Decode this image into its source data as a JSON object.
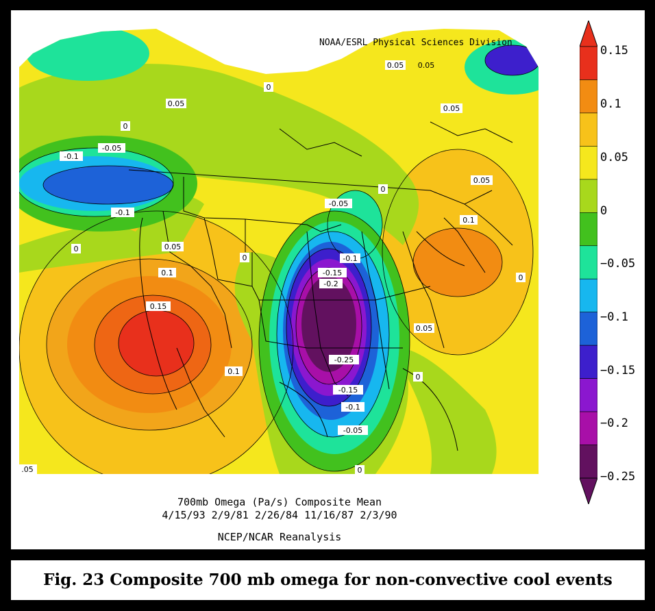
{
  "map": {
    "credit": "NOAA/ESRL Physical Sciences Division",
    "title_line1": "700mb Omega (Pa/s) Composite Mean",
    "title_line2": "4/15/93 2/9/81 2/26/84 11/16/87 2/3/90",
    "title_line3": "NCEP/NCAR Reanalysis",
    "contour_labels": [
      {
        "text": "0.05"
      },
      {
        "text": "0"
      },
      {
        "text": "0.05"
      },
      {
        "text": "0"
      },
      {
        "text": "-0.05"
      },
      {
        "text": "-0.1"
      },
      {
        "text": "-0.1"
      },
      {
        "text": "0"
      },
      {
        "text": "0.05"
      },
      {
        "text": "0.1"
      },
      {
        "text": "0.15"
      },
      {
        "text": "0"
      },
      {
        "text": "0.1"
      },
      {
        "text": "-0.05"
      },
      {
        "text": "0"
      },
      {
        "text": "-0.1"
      },
      {
        "text": "-0.15"
      },
      {
        "text": "-0.2"
      },
      {
        "text": "-0.25"
      },
      {
        "text": "-0.15"
      },
      {
        "text": "-0.1"
      },
      {
        "text": "-0.05"
      },
      {
        "text": "0"
      },
      {
        "text": "0.05"
      },
      {
        "text": "0.05"
      },
      {
        "text": "0.05"
      },
      {
        "text": "0.1"
      },
      {
        "text": "0"
      },
      {
        "text": "0.05"
      },
      {
        "text": "0"
      },
      {
        "text": ".05"
      }
    ]
  },
  "colorbar": {
    "labels": [
      "0.15",
      "0.1",
      "0.05",
      "0",
      "−0.05",
      "−0.1",
      "−0.15",
      "−0.2",
      "−0.25"
    ],
    "colors": [
      "#e8301c",
      "#f28c12",
      "#f7c21a",
      "#f5e71d",
      "#a8d81c",
      "#42c11e",
      "#1ee39a",
      "#17b7ef",
      "#1d62d8",
      "#3d1fcc",
      "#8b17cf",
      "#a80fa8",
      "#62115f"
    ]
  },
  "caption": "Fig. 23 Composite 700 mb omega for non-convective cool events"
}
